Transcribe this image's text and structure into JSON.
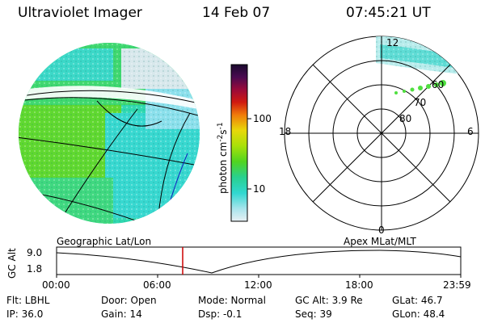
{
  "header": {
    "instrument": "Ultraviolet Imager",
    "date": "14 Feb 07",
    "time": "07:45:21 UT"
  },
  "colorbar": {
    "label": "photon cm",
    "label_exp1": "-2",
    "label_mid": "s",
    "label_exp2": "-1",
    "ticks": [
      "100",
      "10"
    ],
    "colors": [
      "#1a0a2e",
      "#3b0a4f",
      "#6a0a5a",
      "#9a0a3a",
      "#c80a1a",
      "#e83a0a",
      "#f07a0a",
      "#f0a80a",
      "#e8d80a",
      "#c8e80a",
      "#98e00a",
      "#60d818",
      "#30d050",
      "#28d0a0",
      "#30d8d0",
      "#80e0e8",
      "#c8ecf0",
      "#e8f0f4"
    ]
  },
  "polar": {
    "labels": {
      "top": "12",
      "left": "18",
      "right": "6",
      "bottom": "0"
    },
    "ring_labels": [
      "80",
      "70",
      "60"
    ]
  },
  "timeline": {
    "left_title": "Geographic Lat/Lon",
    "right_title": "Apex  MLat/MLT",
    "axis_label": "GC Alt",
    "y_ticks": [
      "9.0",
      "1.8"
    ],
    "x_ticks": [
      "00:00",
      "06:00",
      "12:00",
      "18:00",
      "23:59"
    ],
    "marker_color": "#cc0000"
  },
  "info": {
    "flt": "Flt: LBHL",
    "ip": "IP: 36.0",
    "door": "Door: Open",
    "gain": "Gain: 14",
    "mode": "Mode: Normal",
    "dsp": "Dsp:   -0.1",
    "gcalt": "GC Alt: 3.9 Re",
    "seq": "Seq: 39",
    "glat": "GLat:  46.7",
    "glon": "GLon:  48.4"
  }
}
